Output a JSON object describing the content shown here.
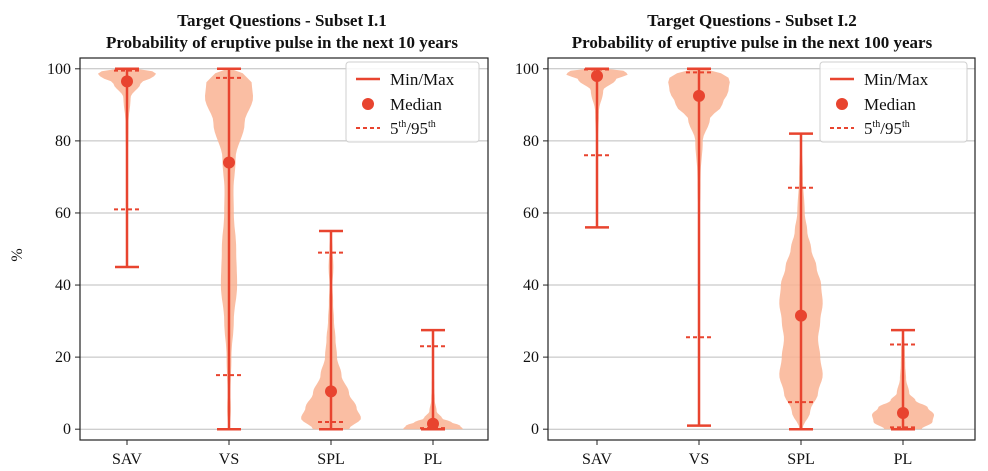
{
  "chart_data": [
    {
      "type": "violin",
      "title_line1": "Target Questions - Subset I.1",
      "title_line2": "Probability of eruptive pulse in the next 10 years",
      "ylabel": "%",
      "ylim": [
        -3,
        103
      ],
      "yticks": [
        0,
        20,
        40,
        60,
        80,
        100
      ],
      "categories": [
        "SAV",
        "VS",
        "SPL",
        "PL"
      ],
      "grid": "horizontal",
      "legend": {
        "placement": "top-right",
        "entries": [
          {
            "label": "Min/Max"
          },
          {
            "label": "Median"
          },
          {
            "label_base": "5",
            "label_sup1": "th",
            "label_mid": "/95",
            "label_sup2": "th"
          }
        ]
      },
      "colors": {
        "line": "#e8442f",
        "fill": "#f9b393"
      },
      "stats": [
        {
          "min": 45,
          "max": 100,
          "median": 96.5,
          "p5": 61,
          "p95": 99.5
        },
        {
          "min": 0,
          "max": 100,
          "median": 74,
          "p5": 15,
          "p95": 97.5
        },
        {
          "min": 0,
          "max": 55,
          "median": 10.5,
          "p5": 2,
          "p95": 49
        },
        {
          "min": 0,
          "max": 27.5,
          "median": 1.5,
          "p5": 0.3,
          "p95": 23
        }
      ],
      "density": [
        [
          [
            45,
            0.01
          ],
          [
            60,
            0.02
          ],
          [
            75,
            0.03
          ],
          [
            85,
            0.05
          ],
          [
            92,
            0.12
          ],
          [
            96,
            0.45
          ],
          [
            98,
            0.9
          ],
          [
            99,
            1.0
          ],
          [
            100,
            0.3
          ]
        ],
        [
          [
            0,
            0.02
          ],
          [
            5,
            0.06
          ],
          [
            10,
            0.05
          ],
          [
            20,
            0.08
          ],
          [
            30,
            0.16
          ],
          [
            40,
            0.27
          ],
          [
            50,
            0.24
          ],
          [
            60,
            0.16
          ],
          [
            66,
            0.15
          ],
          [
            75,
            0.22
          ],
          [
            85,
            0.52
          ],
          [
            92,
            0.8
          ],
          [
            96,
            0.76
          ],
          [
            99,
            0.45
          ],
          [
            100,
            0.05
          ]
        ],
        [
          [
            0,
            0.6
          ],
          [
            3,
            1.0
          ],
          [
            6,
            0.85
          ],
          [
            10,
            0.6
          ],
          [
            15,
            0.35
          ],
          [
            20,
            0.2
          ],
          [
            25,
            0.15
          ],
          [
            30,
            0.1
          ],
          [
            35,
            0.07
          ],
          [
            40,
            0.05
          ],
          [
            45,
            0.08
          ],
          [
            50,
            0.05
          ],
          [
            55,
            0.01
          ]
        ],
        [
          [
            0,
            1.0
          ],
          [
            1,
            0.9
          ],
          [
            2,
            0.6
          ],
          [
            3,
            0.3
          ],
          [
            5,
            0.12
          ],
          [
            8,
            0.06
          ],
          [
            12,
            0.04
          ],
          [
            16,
            0.03
          ],
          [
            20,
            0.03
          ],
          [
            24,
            0.02
          ],
          [
            27.5,
            0.01
          ]
        ]
      ]
    },
    {
      "type": "violin",
      "title_line1": "Target Questions - Subset I.2",
      "title_line2": "Probability of eruptive pulse in the next 100 years",
      "ylabel": "",
      "ylim": [
        -3,
        103
      ],
      "yticks": [
        0,
        20,
        40,
        60,
        80,
        100
      ],
      "categories": [
        "SAV",
        "VS",
        "SPL",
        "PL"
      ],
      "grid": "horizontal",
      "legend": {
        "placement": "top-right",
        "entries": [
          {
            "label": "Min/Max"
          },
          {
            "label": "Median"
          },
          {
            "label_base": "5",
            "label_sup1": "th",
            "label_mid": "/95",
            "label_sup2": "th"
          }
        ]
      },
      "colors": {
        "line": "#e8442f",
        "fill": "#f9b393"
      },
      "stats": [
        {
          "min": 56,
          "max": 100,
          "median": 98,
          "p5": 76,
          "p95": 99.8
        },
        {
          "min": 1,
          "max": 100,
          "median": 92.5,
          "p5": 25.5,
          "p95": 99
        },
        {
          "min": 0,
          "max": 82,
          "median": 31.5,
          "p5": 7.5,
          "p95": 67
        },
        {
          "min": 0,
          "max": 27.5,
          "median": 4.5,
          "p5": 0.5,
          "p95": 23.5
        }
      ],
      "density": [
        [
          [
            56,
            0.01
          ],
          [
            70,
            0.02
          ],
          [
            80,
            0.03
          ],
          [
            88,
            0.06
          ],
          [
            94,
            0.2
          ],
          [
            97,
            0.6
          ],
          [
            98.5,
            1.0
          ],
          [
            99.5,
            0.85
          ],
          [
            100,
            0.3
          ]
        ],
        [
          [
            1,
            0.005
          ],
          [
            20,
            0.01
          ],
          [
            40,
            0.02
          ],
          [
            60,
            0.03
          ],
          [
            70,
            0.05
          ],
          [
            80,
            0.12
          ],
          [
            86,
            0.35
          ],
          [
            90,
            0.75
          ],
          [
            94,
            0.95
          ],
          [
            97,
            1.0
          ],
          [
            99,
            0.7
          ],
          [
            100,
            0.15
          ]
        ],
        [
          [
            0,
            0.05
          ],
          [
            5,
            0.3
          ],
          [
            10,
            0.55
          ],
          [
            15,
            0.7
          ],
          [
            20,
            0.62
          ],
          [
            25,
            0.55
          ],
          [
            30,
            0.62
          ],
          [
            35,
            0.7
          ],
          [
            40,
            0.65
          ],
          [
            45,
            0.5
          ],
          [
            50,
            0.33
          ],
          [
            55,
            0.2
          ],
          [
            60,
            0.12
          ],
          [
            70,
            0.06
          ],
          [
            82,
            0.01
          ]
        ],
        [
          [
            0,
            0.6
          ],
          [
            2,
            0.95
          ],
          [
            4,
            1.0
          ],
          [
            6,
            0.8
          ],
          [
            8,
            0.4
          ],
          [
            10,
            0.2
          ],
          [
            14,
            0.1
          ],
          [
            18,
            0.07
          ],
          [
            22,
            0.06
          ],
          [
            25,
            0.04
          ],
          [
            27.5,
            0.01
          ]
        ]
      ]
    }
  ]
}
